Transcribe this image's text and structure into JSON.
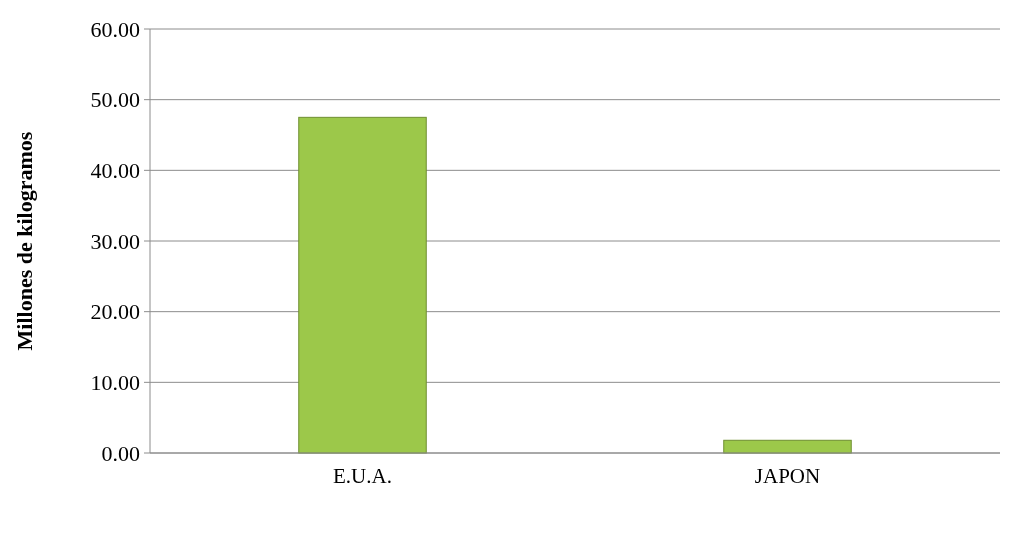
{
  "chart_data": {
    "type": "bar",
    "ylabel": "Millones de kilogramos",
    "categories": [
      "E.U.A.",
      "JAPON"
    ],
    "values": [
      47.5,
      1.8
    ],
    "color": "#9cc84a",
    "ylim": [
      0,
      60
    ],
    "yticks": [
      {
        "value": 0,
        "label": "0.00"
      },
      {
        "value": 10,
        "label": "10.00"
      },
      {
        "value": 20,
        "label": "20.00"
      },
      {
        "value": 30,
        "label": "30.00"
      },
      {
        "value": 40,
        "label": "40.00"
      },
      {
        "value": 50,
        "label": "50.00"
      },
      {
        "value": 60,
        "label": "60.00"
      }
    ],
    "grid": "y"
  }
}
